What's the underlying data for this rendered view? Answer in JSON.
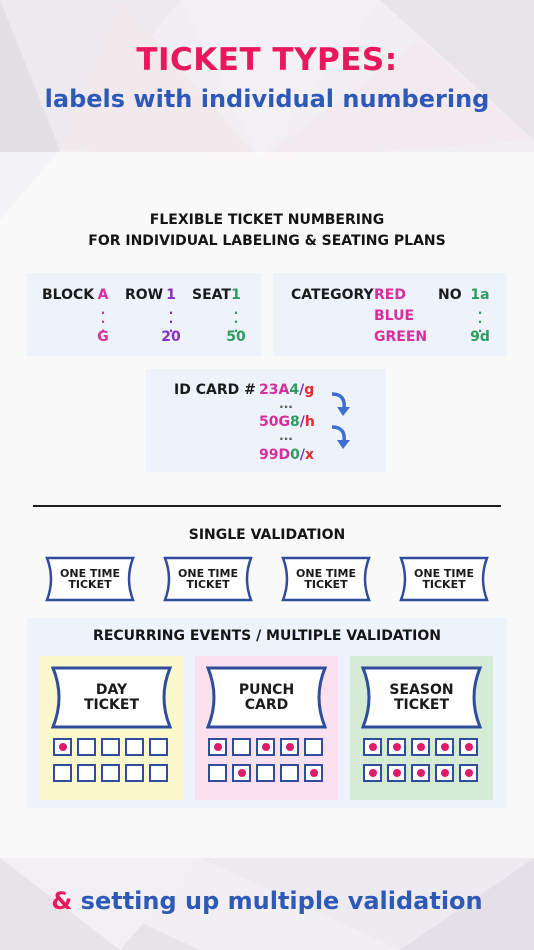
{
  "header": {
    "title": "TICKET TYPES:",
    "subtitle": "labels with individual numbering"
  },
  "numbering": {
    "heading_line1": "FLEXIBLE TICKET NUMBERING",
    "heading_line2": "FOR INDIVIDUAL LABELING & SEATING PLANS",
    "seating": {
      "block_label": "BLOCK",
      "block_start": "A",
      "block_end": "G",
      "row_label": "ROW",
      "row_start": "1",
      "row_end": "20",
      "seat_label": "SEAT",
      "seat_start": "1",
      "seat_end": "50"
    },
    "category": {
      "category_label": "CATEGORY",
      "values": [
        "RED",
        "BLUE",
        "GREEN"
      ],
      "no_label": "NO",
      "no_start": "1a",
      "no_end": "9d"
    },
    "id_card": {
      "label": "ID CARD #",
      "ids": [
        {
          "a": "23A",
          "b": "4",
          "c": "/",
          "d": "g"
        },
        {
          "a": "50G",
          "b": "8",
          "c": "/",
          "d": "h"
        },
        {
          "a": "99D",
          "b": "0",
          "c": "/",
          "d": "x"
        }
      ]
    }
  },
  "single": {
    "heading": "SINGLE VALIDATION",
    "tickets": [
      {
        "line1": "ONE TIME",
        "line2": "TICKET"
      },
      {
        "line1": "ONE TIME",
        "line2": "TICKET"
      },
      {
        "line1": "ONE TIME",
        "line2": "TICKET"
      },
      {
        "line1": "ONE TIME",
        "line2": "TICKET"
      }
    ]
  },
  "recurring": {
    "heading": "RECURRING EVENTS / MULTIPLE VALIDATION",
    "cards": [
      {
        "line1": "DAY",
        "line2": "TICKET",
        "bg": "#fbf8cb",
        "punched": [
          [
            1,
            0,
            0,
            0,
            0
          ],
          [
            0,
            0,
            0,
            0,
            0
          ]
        ]
      },
      {
        "line1": "PUNCH",
        "line2": "CARD",
        "bg": "#fbe1ef",
        "punched": [
          [
            1,
            0,
            1,
            1,
            0
          ],
          [
            0,
            1,
            0,
            0,
            1
          ]
        ]
      },
      {
        "line1": "SEASON",
        "line2": "TICKET",
        "bg": "#d5ebd6",
        "punched": [
          [
            1,
            1,
            1,
            1,
            1
          ],
          [
            1,
            1,
            1,
            1,
            1
          ]
        ]
      }
    ]
  },
  "footer": {
    "amp": "&",
    "text": " setting up multiple validation"
  },
  "colors": {
    "title_pink": "#e8185d",
    "subtitle_blue": "#2e59b8",
    "ticket_outline": "#2f4d9a",
    "punch_dot": "#e3196a"
  }
}
